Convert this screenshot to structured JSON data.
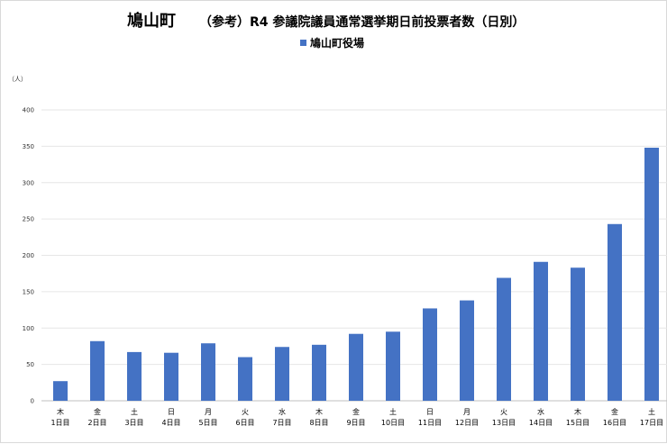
{
  "chart_data": {
    "type": "bar",
    "title": "鳩山町",
    "subtitle": "（参考）R4 参議院議員通常選挙期日前投票者数（日別）",
    "ylabel": "（人）",
    "xlabel": "",
    "ylim": [
      0,
      400
    ],
    "yticks": [
      "0",
      "50",
      "100",
      "150",
      "200",
      "250",
      "300",
      "350",
      "400"
    ],
    "grid": true,
    "legend_position": "top-center",
    "categories": [
      {
        "weekday": "木",
        "day": "1日目"
      },
      {
        "weekday": "金",
        "day": "2日目"
      },
      {
        "weekday": "土",
        "day": "3日目"
      },
      {
        "weekday": "日",
        "day": "4日目"
      },
      {
        "weekday": "月",
        "day": "5日目"
      },
      {
        "weekday": "火",
        "day": "6日目"
      },
      {
        "weekday": "水",
        "day": "7日目"
      },
      {
        "weekday": "木",
        "day": "8日目"
      },
      {
        "weekday": "金",
        "day": "9日目"
      },
      {
        "weekday": "土",
        "day": "10日目"
      },
      {
        "weekday": "日",
        "day": "11日目"
      },
      {
        "weekday": "月",
        "day": "12日目"
      },
      {
        "weekday": "火",
        "day": "13日目"
      },
      {
        "weekday": "水",
        "day": "14日目"
      },
      {
        "weekday": "木",
        "day": "15日目"
      },
      {
        "weekday": "金",
        "day": "16日目"
      },
      {
        "weekday": "土",
        "day": "17日目"
      }
    ],
    "series": [
      {
        "name": "鳩山町役場",
        "color": "#4472c4",
        "values": [
          27,
          82,
          67,
          66,
          79,
          60,
          74,
          77,
          92,
          95,
          127,
          138,
          169,
          191,
          183,
          243,
          348
        ]
      }
    ]
  }
}
